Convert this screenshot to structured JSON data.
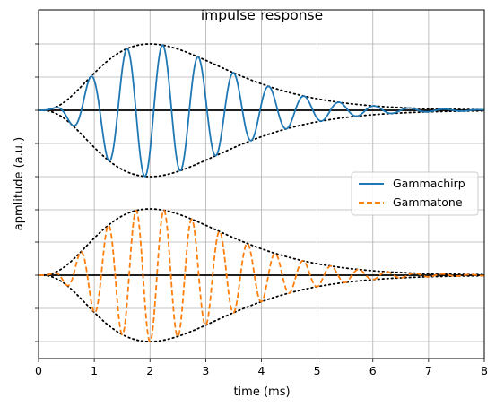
{
  "chart_data": {
    "type": "line",
    "title": "impulse response",
    "xlabel": "time (ms)",
    "ylabel": "apmlitude (a.u.)",
    "xlim": [
      0,
      8
    ],
    "xticks": [
      "0",
      "1",
      "2",
      "3",
      "4",
      "5",
      "6",
      "7",
      "8"
    ],
    "grid": true,
    "y_tick_labels_shown": false,
    "legend_placement": "center-right",
    "series": [
      {
        "name": "Gammachirp",
        "color": "#1f77b4",
        "linestyle": "solid",
        "carrier_frequency_khz": 1.6,
        "chirp": -0.08,
        "envelope_peak_ms": 2.0,
        "baseline": "upper",
        "envelope_style": "dotted"
      },
      {
        "name": "Gammatone",
        "color": "#ff7f0e",
        "linestyle": "dashed",
        "carrier_frequency_khz": 2.0,
        "chirp": 0.0,
        "envelope_peak_ms": 2.0,
        "baseline": "lower",
        "envelope_style": "dotted"
      }
    ]
  }
}
